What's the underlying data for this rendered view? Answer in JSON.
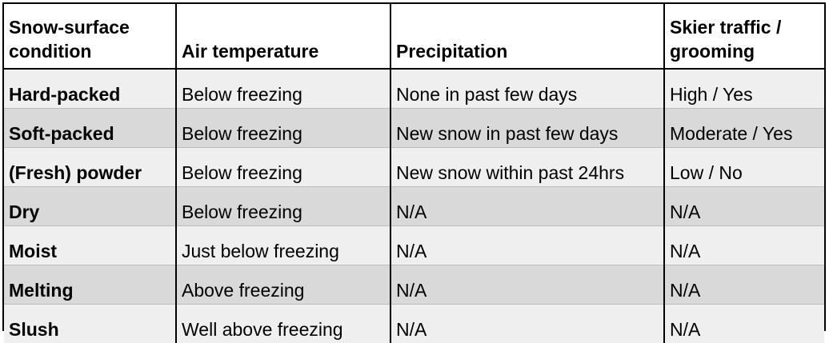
{
  "table": {
    "headers": [
      "Snow-surface condition",
      "Air temperature",
      "Precipitation",
      "Skier traffic / grooming"
    ],
    "rows": [
      [
        "Hard-packed",
        "Below freezing",
        "None in past few days",
        "High / Yes"
      ],
      [
        "Soft-packed",
        "Below freezing",
        "New snow in past few days",
        "Moderate / Yes"
      ],
      [
        "(Fresh) powder",
        "Below freezing",
        "New snow within past 24hrs",
        "Low / No"
      ],
      [
        "Dry",
        "Below freezing",
        "N/A",
        "N/A"
      ],
      [
        "Moist",
        "Just below freezing",
        "N/A",
        "N/A"
      ],
      [
        "Melting",
        "Above freezing",
        "N/A",
        "N/A"
      ],
      [
        "Slush",
        "Well above freezing",
        "N/A",
        "N/A"
      ]
    ]
  },
  "colors": {
    "border": "#000000",
    "header_bg": "#ffffff",
    "row_light": "#efefef",
    "row_dark": "#d9d9d9"
  }
}
